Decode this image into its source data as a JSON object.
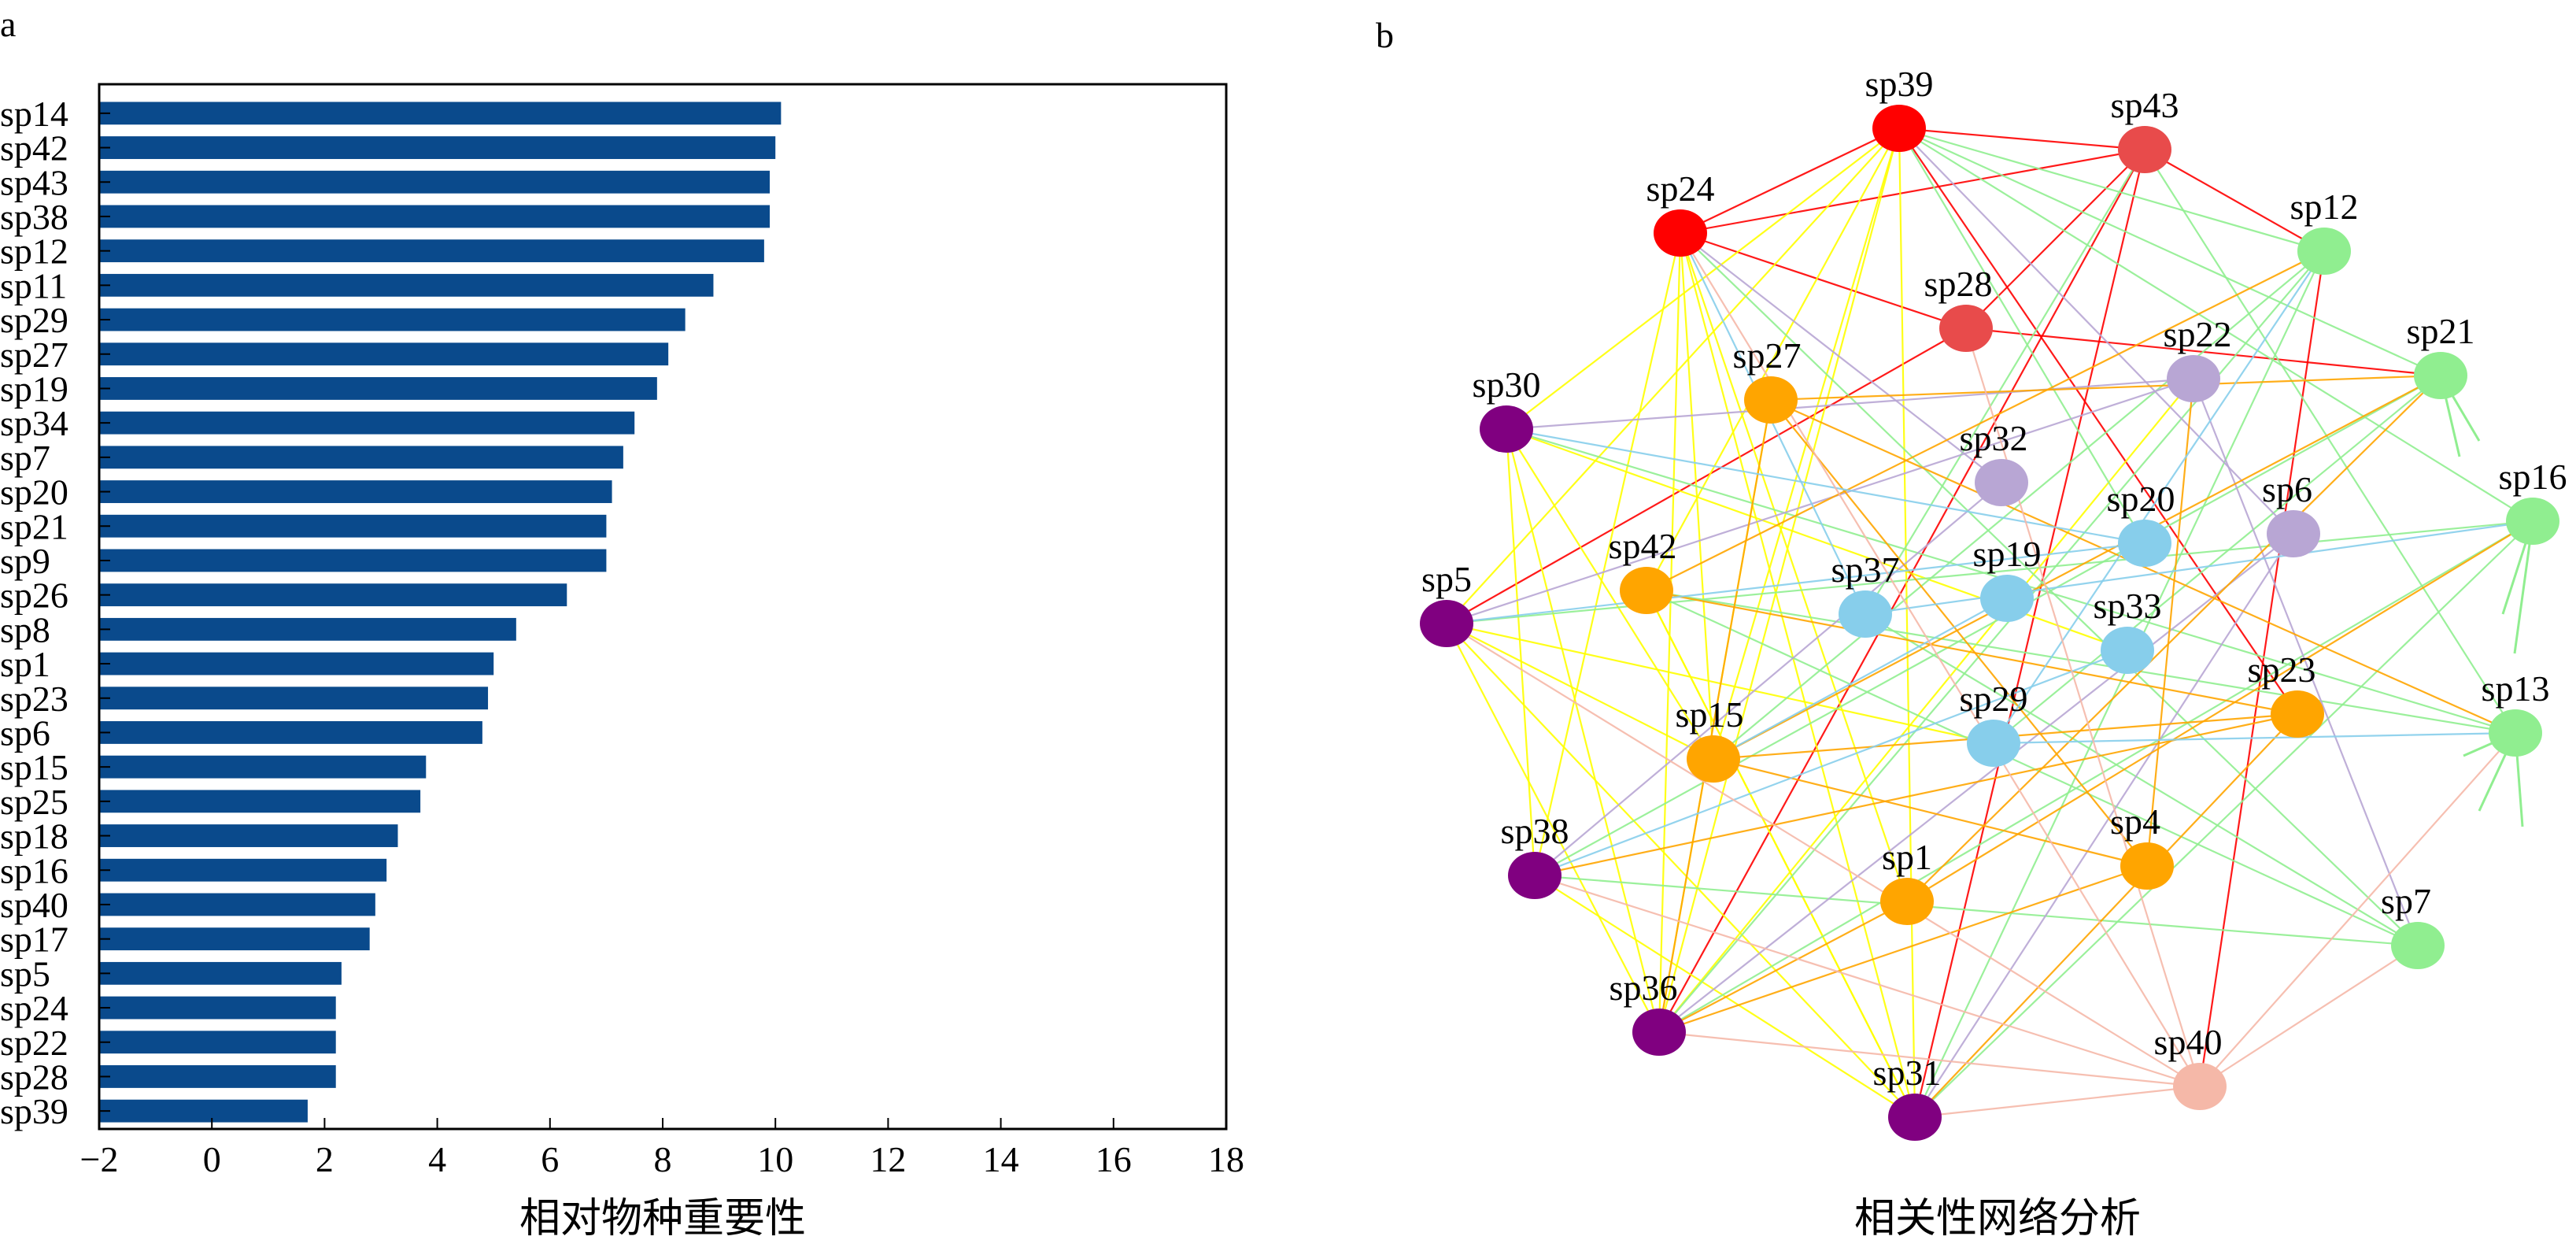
{
  "panels": {
    "a": "a",
    "b": "b"
  },
  "chart_data": [
    {
      "type": "bar",
      "orientation": "horizontal",
      "categories": [
        "sp14",
        "sp42",
        "sp43",
        "sp38",
        "sp12",
        "sp11",
        "sp29",
        "sp27",
        "sp19",
        "sp34",
        "sp7",
        "sp20",
        "sp21",
        "sp9",
        "sp26",
        "sp8",
        "sp1",
        "sp23",
        "sp6",
        "sp15",
        "sp25",
        "sp18",
        "sp16",
        "sp40",
        "sp17",
        "sp5",
        "sp24",
        "sp22",
        "sp28",
        "sp39"
      ],
      "values": [
        10.1,
        10.0,
        9.9,
        9.9,
        9.8,
        8.9,
        8.4,
        8.1,
        7.9,
        7.5,
        7.3,
        7.1,
        7.0,
        7.0,
        6.3,
        5.4,
        5.0,
        4.9,
        4.8,
        3.8,
        3.7,
        3.3,
        3.1,
        2.9,
        2.8,
        2.3,
        2.2,
        2.2,
        2.2,
        1.7
      ],
      "xlabel": "相对物种重要性",
      "xlim": [
        -2,
        18
      ],
      "xticks": [
        -2,
        0,
        2,
        4,
        6,
        8,
        10,
        12,
        14,
        16,
        18
      ],
      "xtick_labels": [
        "−2",
        "0",
        "2",
        "4",
        "6",
        "8",
        "10",
        "12",
        "14",
        "16",
        "18"
      ],
      "bar_color": "#0a4a8c",
      "grid": false
    },
    {
      "type": "network",
      "xlabel": "相关性网络分析",
      "nodes": [
        {
          "id": "sp39",
          "color": "#ff0000"
        },
        {
          "id": "sp43",
          "color": "#e84b4b"
        },
        {
          "id": "sp24",
          "color": "#ff0000"
        },
        {
          "id": "sp28",
          "color": "#e84b4b"
        },
        {
          "id": "sp12",
          "color": "#90ee90"
        },
        {
          "id": "sp21",
          "color": "#90ee90"
        },
        {
          "id": "sp16",
          "color": "#90ee90"
        },
        {
          "id": "sp13",
          "color": "#90ee90"
        },
        {
          "id": "sp7",
          "color": "#90ee90"
        },
        {
          "id": "sp22",
          "color": "#b8a6d4"
        },
        {
          "id": "sp32",
          "color": "#b8a6d4"
        },
        {
          "id": "sp6",
          "color": "#b8a6d4"
        },
        {
          "id": "sp27",
          "color": "#ffa500"
        },
        {
          "id": "sp42",
          "color": "#ffa500"
        },
        {
          "id": "sp15",
          "color": "#ffa500"
        },
        {
          "id": "sp23",
          "color": "#ffa500"
        },
        {
          "id": "sp4",
          "color": "#ffa500"
        },
        {
          "id": "sp1",
          "color": "#ffa500"
        },
        {
          "id": "sp20",
          "color": "#87ceeb"
        },
        {
          "id": "sp37",
          "color": "#87ceeb"
        },
        {
          "id": "sp19",
          "color": "#87ceeb"
        },
        {
          "id": "sp33",
          "color": "#87ceeb"
        },
        {
          "id": "sp29",
          "color": "#87ceeb"
        },
        {
          "id": "sp30",
          "color": "#800080"
        },
        {
          "id": "sp5",
          "color": "#800080"
        },
        {
          "id": "sp38",
          "color": "#800080"
        },
        {
          "id": "sp36",
          "color": "#800080"
        },
        {
          "id": "sp31",
          "color": "#800080"
        },
        {
          "id": "sp40",
          "color": "#f5b8a8"
        }
      ],
      "edges": [
        [
          "sp39",
          "sp43",
          "#ff0000"
        ],
        [
          "sp39",
          "sp24",
          "#ff0000"
        ],
        [
          "sp43",
          "sp24",
          "#ff0000"
        ],
        [
          "sp24",
          "sp28",
          "#ff0000"
        ],
        [
          "sp28",
          "sp21",
          "#ff0000"
        ],
        [
          "sp43",
          "sp12",
          "#ff0000"
        ],
        [
          "sp28",
          "sp5",
          "#ff0000"
        ],
        [
          "sp43",
          "sp36",
          "#ff0000"
        ],
        [
          "sp43",
          "sp31",
          "#ff0000"
        ],
        [
          "sp12",
          "sp40",
          "#ff0000"
        ],
        [
          "sp39",
          "sp23",
          "#ff0000"
        ],
        [
          "sp43",
          "sp28",
          "#ff0000"
        ],
        [
          "sp39",
          "sp30",
          "#ffff00"
        ],
        [
          "sp39",
          "sp5",
          "#ffff00"
        ],
        [
          "sp39",
          "sp42",
          "#ffff00"
        ],
        [
          "sp39",
          "sp15",
          "#ffff00"
        ],
        [
          "sp39",
          "sp36",
          "#ffff00"
        ],
        [
          "sp39",
          "sp31",
          "#ffff00"
        ],
        [
          "sp24",
          "sp38",
          "#ffff00"
        ],
        [
          "sp24",
          "sp36",
          "#ffff00"
        ],
        [
          "sp24",
          "sp15",
          "#ffff00"
        ],
        [
          "sp24",
          "sp31",
          "#ffff00"
        ],
        [
          "sp24",
          "sp1",
          "#ffff00"
        ],
        [
          "sp30",
          "sp38",
          "#ffff00"
        ],
        [
          "sp30",
          "sp15",
          "#ffff00"
        ],
        [
          "sp30",
          "sp33",
          "#ffff00"
        ],
        [
          "sp5",
          "sp36",
          "#ffff00"
        ],
        [
          "sp5",
          "sp31",
          "#ffff00"
        ],
        [
          "sp5",
          "sp29",
          "#ffff00"
        ],
        [
          "sp38",
          "sp31",
          "#ffff00"
        ],
        [
          "sp36",
          "sp27",
          "#ffff00"
        ],
        [
          "sp36",
          "sp22",
          "#ffff00"
        ],
        [
          "sp31",
          "sp42",
          "#ffff00"
        ],
        [
          "sp5",
          "sp15",
          "#ffff00"
        ],
        [
          "sp30",
          "sp36",
          "#ffff00"
        ],
        [
          "sp42",
          "sp31",
          "#ffff00"
        ],
        [
          "sp39",
          "sp12",
          "#90ee90"
        ],
        [
          "sp39",
          "sp21",
          "#90ee90"
        ],
        [
          "sp39",
          "sp20",
          "#90ee90"
        ],
        [
          "sp39",
          "sp16",
          "#90ee90"
        ],
        [
          "sp43",
          "sp37",
          "#90ee90"
        ],
        [
          "sp43",
          "sp13",
          "#90ee90"
        ],
        [
          "sp12",
          "sp15",
          "#90ee90"
        ],
        [
          "sp12",
          "sp31",
          "#90ee90"
        ],
        [
          "sp21",
          "sp38",
          "#90ee90"
        ],
        [
          "sp21",
          "sp29",
          "#90ee90"
        ],
        [
          "sp16",
          "sp36",
          "#90ee90"
        ],
        [
          "sp16",
          "sp5",
          "#90ee90"
        ],
        [
          "sp16",
          "sp31",
          "#90ee90"
        ],
        [
          "sp13",
          "sp30",
          "#90ee90"
        ],
        [
          "sp13",
          "sp42",
          "#90ee90"
        ],
        [
          "sp7",
          "sp24",
          "#90ee90"
        ],
        [
          "sp7",
          "sp42",
          "#90ee90"
        ],
        [
          "sp7",
          "sp38",
          "#90ee90"
        ],
        [
          "sp7",
          "sp37",
          "#90ee90"
        ],
        [
          "sp12",
          "sp36",
          "#90ee90"
        ],
        [
          "sp22",
          "sp30",
          "#b8a6d4"
        ],
        [
          "sp22",
          "sp5",
          "#b8a6d4"
        ],
        [
          "sp32",
          "sp24",
          "#b8a6d4"
        ],
        [
          "sp32",
          "sp38",
          "#b8a6d4"
        ],
        [
          "sp6",
          "sp36",
          "#b8a6d4"
        ],
        [
          "sp6",
          "sp31",
          "#b8a6d4"
        ],
        [
          "sp6",
          "sp39",
          "#b8a6d4"
        ],
        [
          "sp22",
          "sp7",
          "#b8a6d4"
        ],
        [
          "sp27",
          "sp21",
          "#ffa500"
        ],
        [
          "sp27",
          "sp4",
          "#ffa500"
        ],
        [
          "sp27",
          "sp36",
          "#ffa500"
        ],
        [
          "sp27",
          "sp13",
          "#ffa500"
        ],
        [
          "sp42",
          "sp23",
          "#ffa500"
        ],
        [
          "sp42",
          "sp12",
          "#ffa500"
        ],
        [
          "sp15",
          "sp23",
          "#ffa500"
        ],
        [
          "sp15",
          "sp21",
          "#ffa500"
        ],
        [
          "sp4",
          "sp36",
          "#ffa500"
        ],
        [
          "sp4",
          "sp15",
          "#ffa500"
        ],
        [
          "sp1",
          "sp36",
          "#ffa500"
        ],
        [
          "sp1",
          "sp16",
          "#ffa500"
        ],
        [
          "sp23",
          "sp38",
          "#ffa500"
        ],
        [
          "sp23",
          "sp31",
          "#ffa500"
        ],
        [
          "sp1",
          "sp21",
          "#ffa500"
        ],
        [
          "sp4",
          "sp22",
          "#ffa500"
        ],
        [
          "sp20",
          "sp5",
          "#87ceeb"
        ],
        [
          "sp20",
          "sp30",
          "#87ceeb"
        ],
        [
          "sp37",
          "sp24",
          "#87ceeb"
        ],
        [
          "sp37",
          "sp16",
          "#87ceeb"
        ],
        [
          "sp19",
          "sp15",
          "#87ceeb"
        ],
        [
          "sp29",
          "sp13",
          "#87ceeb"
        ],
        [
          "sp33",
          "sp38",
          "#87ceeb"
        ],
        [
          "sp29",
          "sp12",
          "#87ceeb"
        ],
        [
          "sp40",
          "sp36",
          "#f5b8a8"
        ],
        [
          "sp40",
          "sp31",
          "#f5b8a8"
        ],
        [
          "sp40",
          "sp24",
          "#f5b8a8"
        ],
        [
          "sp40",
          "sp5",
          "#f5b8a8"
        ],
        [
          "sp40",
          "sp38",
          "#f5b8a8"
        ],
        [
          "sp40",
          "sp7",
          "#f5b8a8"
        ],
        [
          "sp40",
          "sp13",
          "#f5b8a8"
        ],
        [
          "sp40",
          "sp28",
          "#f5b8a8"
        ]
      ]
    }
  ]
}
